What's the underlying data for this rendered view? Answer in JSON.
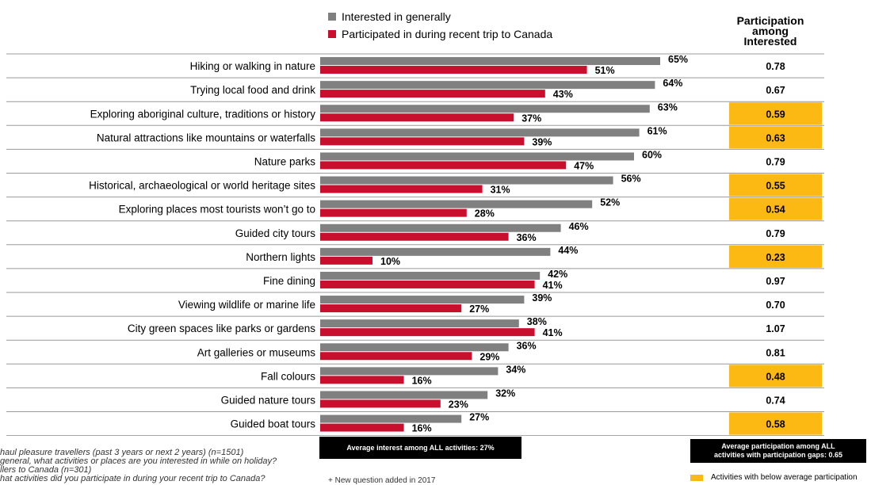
{
  "legend": {
    "interest_label": "Interested in generally",
    "participation_label": "Participated in during recent trip to Canada"
  },
  "ratio_header": [
    "Participation",
    "among",
    "Interested"
  ],
  "colors": {
    "interest": "#808080",
    "participation": "#C8102E",
    "highlight": "#FDB913"
  },
  "chart_data": {
    "type": "bar",
    "orientation": "horizontal",
    "categories": [
      "Hiking or walking in nature",
      "Trying local food and drink",
      "Exploring aboriginal culture, traditions or history",
      "Natural attractions like mountains or waterfalls",
      "Nature parks",
      "Historical, archaeological or world heritage sites",
      "Exploring places most tourists won’t go to",
      "Guided city tours",
      "Northern lights",
      "Fine dining",
      "Viewing wildlife or marine life",
      "City green spaces like parks or gardens",
      "Art galleries or museums",
      "Fall colours",
      "Guided nature tours",
      "Guided boat tours"
    ],
    "series": [
      {
        "name": "Interested in generally",
        "values": [
          65,
          64,
          63,
          61,
          60,
          56,
          52,
          46,
          44,
          42,
          39,
          38,
          36,
          34,
          32,
          27
        ]
      },
      {
        "name": "Participated in during recent trip to Canada",
        "values": [
          51,
          43,
          37,
          39,
          47,
          31,
          28,
          36,
          10,
          41,
          27,
          41,
          29,
          16,
          23,
          16
        ]
      }
    ],
    "ratio": {
      "values": [
        "0.78",
        "0.67",
        "0.59",
        "0.63",
        "0.79",
        "0.55",
        "0.54",
        "0.79",
        "0.23",
        "0.97",
        "0.70",
        "1.07",
        "0.81",
        "0.48",
        "0.74",
        "0.58"
      ],
      "highlighted": [
        false,
        false,
        true,
        true,
        false,
        true,
        true,
        false,
        true,
        false,
        false,
        false,
        false,
        true,
        false,
        true
      ]
    },
    "value_suffix": "%"
  },
  "avg_interest": "Average interest among ALL activities: 27%",
  "avg_participation": [
    "Average participation among ALL",
    "activities with participation gaps: 0.65"
  ],
  "notes": [
    "haul pleasure travellers (past 3 years or next 2 years) (n=1501)",
    "general, what activities or places are you interested in while on holiday?",
    "llers to Canada (n=301)",
    "hat activities did you participate in during your recent trip to Canada?"
  ],
  "bottom_note": "+ New question added in 2017",
  "highlight_legend": "Activities with below average participation"
}
